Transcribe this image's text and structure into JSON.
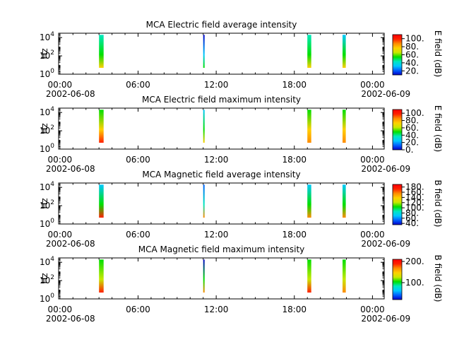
{
  "colorscale": [
    "#0000c8",
    "#0060ff",
    "#00c8ff",
    "#00e8c0",
    "#00e000",
    "#c8e800",
    "#ffd000",
    "#ff8c00",
    "#ff2000",
    "#ff0000"
  ],
  "shared_x": {
    "ticks": [
      "00:00",
      "06:00",
      "12:00",
      "18:00",
      "00:00"
    ],
    "tick_hours": [
      0,
      6,
      12,
      18,
      24
    ],
    "date_labels": [
      "2002-06-08",
      "2002-06-09"
    ],
    "range_hours": [
      -0.1,
      24.9
    ]
  },
  "chart_data": [
    {
      "type": "heatmap",
      "title": "MCA  Electric field average intensity",
      "ylabel": "Hz",
      "yscale": "log",
      "ylim": [
        1,
        30000
      ],
      "y_ticks": [
        {
          "base": "10",
          "exp": "0"
        },
        {
          "base": "10",
          "exp": "2"
        },
        {
          "base": "10",
          "exp": "4"
        }
      ],
      "colorbar": {
        "label": "E field (dB)",
        "ticks": [
          "20.",
          "40.",
          "60.",
          "80.",
          "100."
        ],
        "tick_values": [
          20,
          40,
          60,
          80,
          100
        ],
        "range": [
          10,
          110
        ]
      },
      "bursts": [
        {
          "start_hour": 3.0,
          "end_hour": 3.35,
          "low": "#ffd000",
          "mid": "#00e000",
          "high": "#00e8c0"
        },
        {
          "start_hour": 11.0,
          "end_hour": 11.1,
          "low": "#00e000",
          "mid": "#00c8ff",
          "high": "#0000c8"
        },
        {
          "start_hour": 19.0,
          "end_hour": 19.3,
          "low": "#ffd000",
          "mid": "#00e000",
          "high": "#00e8c0"
        },
        {
          "start_hour": 21.7,
          "end_hour": 21.95,
          "low": "#ffd000",
          "mid": "#00e000",
          "high": "#00c8ff"
        }
      ]
    },
    {
      "type": "heatmap",
      "title": "MCA  Electric field maximum intensity",
      "ylabel": "Hz",
      "yscale": "log",
      "ylim": [
        1,
        30000
      ],
      "y_ticks": [
        {
          "base": "10",
          "exp": "0"
        },
        {
          "base": "10",
          "exp": "2"
        },
        {
          "base": "10",
          "exp": "4"
        }
      ],
      "colorbar": {
        "label": "E field (dB)",
        "ticks": [
          "0.",
          "20.",
          "40.",
          "60.",
          "80.",
          "100."
        ],
        "tick_values": [
          0,
          20,
          40,
          60,
          80,
          100
        ],
        "range": [
          0,
          110
        ]
      },
      "bursts": [
        {
          "start_hour": 3.0,
          "end_hour": 3.35,
          "low": "#ff2000",
          "mid": "#ffd000",
          "high": "#00e000"
        },
        {
          "start_hour": 11.0,
          "end_hour": 11.1,
          "low": "#ffd000",
          "mid": "#00e000",
          "high": "#00c8ff"
        },
        {
          "start_hour": 19.0,
          "end_hour": 19.3,
          "low": "#ff8c00",
          "mid": "#ffd000",
          "high": "#00e000"
        },
        {
          "start_hour": 21.7,
          "end_hour": 21.95,
          "low": "#ff8c00",
          "mid": "#ffd000",
          "high": "#00e000"
        }
      ]
    },
    {
      "type": "heatmap",
      "title": "MCA  Magnetic field average intensity",
      "ylabel": "Hz",
      "yscale": "log",
      "ylim": [
        1,
        30000
      ],
      "y_ticks": [
        {
          "base": "10",
          "exp": "0"
        },
        {
          "base": "10",
          "exp": "2"
        },
        {
          "base": "10",
          "exp": "4"
        }
      ],
      "colorbar": {
        "label": "B field (dB)",
        "ticks": [
          "40.",
          "60.",
          "80.",
          "100.",
          "120.",
          "140.",
          "160.",
          "180."
        ],
        "tick_values": [
          40,
          60,
          80,
          100,
          120,
          140,
          160,
          180
        ],
        "range": [
          35,
          190
        ]
      },
      "bursts": [
        {
          "start_hour": 3.0,
          "end_hour": 3.35,
          "low": "#ff2000",
          "mid": "#00e000",
          "high": "#00c8ff"
        },
        {
          "start_hour": 11.0,
          "end_hour": 11.1,
          "low": "#ff8c00",
          "mid": "#00e8c0",
          "high": "#0060ff"
        },
        {
          "start_hour": 19.0,
          "end_hour": 19.3,
          "low": "#ff8c00",
          "mid": "#00e000",
          "high": "#00c8ff"
        },
        {
          "start_hour": 21.7,
          "end_hour": 21.95,
          "low": "#ff8c00",
          "mid": "#00e000",
          "high": "#00c8ff"
        }
      ]
    },
    {
      "type": "heatmap",
      "title": "MCA  Magnetic field maximum intensity",
      "ylabel": "Hz",
      "yscale": "log",
      "ylim": [
        1,
        30000
      ],
      "y_ticks": [
        {
          "base": "10",
          "exp": "0"
        },
        {
          "base": "10",
          "exp": "2"
        },
        {
          "base": "10",
          "exp": "4"
        }
      ],
      "colorbar": {
        "label": "B field (dB)",
        "ticks": [
          "100.",
          "200."
        ],
        "tick_values": [
          100,
          200
        ],
        "range": [
          20,
          210
        ]
      },
      "bursts": [
        {
          "start_hour": 3.0,
          "end_hour": 3.35,
          "low": "#ff2000",
          "mid": "#c8e800",
          "high": "#00e000"
        },
        {
          "start_hour": 11.0,
          "end_hour": 11.1,
          "low": "#ff8c00",
          "mid": "#00e000",
          "high": "#0000c8"
        },
        {
          "start_hour": 19.0,
          "end_hour": 19.3,
          "low": "#ff2000",
          "mid": "#c8e800",
          "high": "#00e000"
        },
        {
          "start_hour": 21.7,
          "end_hour": 21.95,
          "low": "#ff8c00",
          "mid": "#c8e800",
          "high": "#00e000"
        }
      ]
    }
  ]
}
